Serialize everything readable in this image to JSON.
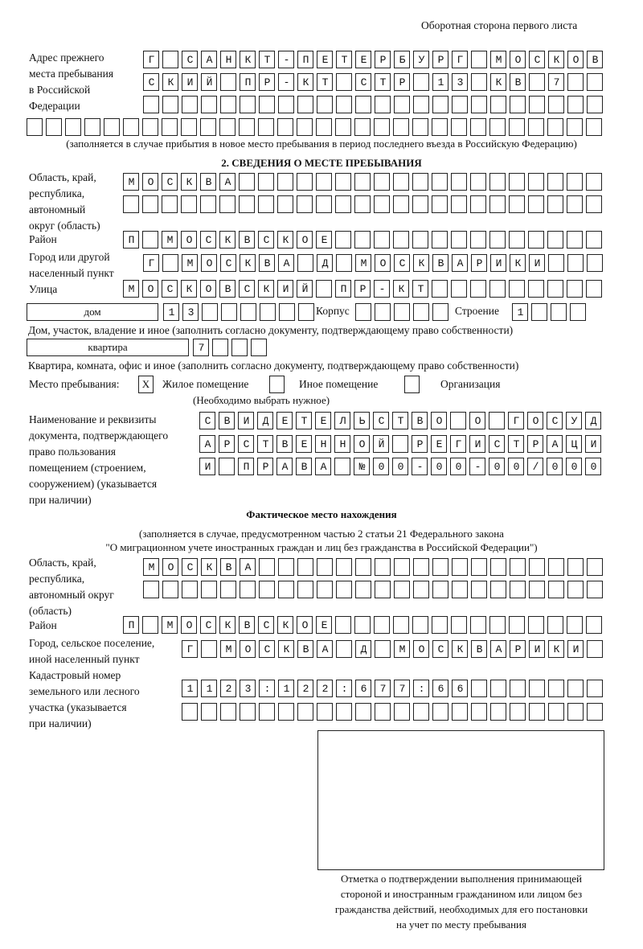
{
  "header": {
    "page_note": "Оборотная сторона первого листа"
  },
  "prev_address": {
    "label": "Адрес прежнего\nместа пребывания\nв Российской\nФедерации",
    "rows": [
      "Г САНКТ-ПЕТЕРБУРГ МОСКОВ",
      "СКИЙ ПР-КТ СТР 13 КВ 7",
      "",
      ""
    ],
    "note": "(заполняется в случае прибытия в новое место пребывания в период последнего въезда в Российскую Федерацию)"
  },
  "section2": {
    "title": "2. СВЕДЕНИЯ О МЕСТЕ ПРЕБЫВАНИЯ",
    "region_label": "Область, край,\nреспублика,\nавтономный\nокруг (область)",
    "region_rows": [
      "МОСКВА",
      ""
    ],
    "district_label": "Район",
    "district": "П МОСКВСКОЕ",
    "city_label": "Город или другой\nнаселенный пункт",
    "city": "Г МОСКВА Д МОСКВАРИКИ",
    "street_label": "Улица",
    "street": "МОСКОВСКИЙ ПР-КТ",
    "house_type": "дом",
    "house_number": "13",
    "korpus_label": "Корпус",
    "korpus": "",
    "stroenie_label": "Строение",
    "stroenie": "1",
    "house_note": "Дом, участок, владение и иное (заполнить согласно документу, подтверждающему право собственности)",
    "apt_type": "квартира",
    "apt_number": "7",
    "apt_note": "Квартира, комната, офис и иное (заполнить согласно документу, подтверждающему право собственности)",
    "place_label": "Место пребывания:",
    "place_options": [
      {
        "mark": "X",
        "label": "Жилое помещение"
      },
      {
        "mark": "",
        "label": "Иное помещение"
      },
      {
        "mark": "",
        "label": "Организация"
      }
    ],
    "place_note": "(Необходимо выбрать нужное)",
    "doc_label": "Наименование и реквизиты\nдокумента, подтверждающего\nправо пользования\nпомещением (строением,\nсооружением) (указывается\nпри наличии)",
    "doc_rows": [
      "СВИДЕТЕЛЬСТВО О ГОСУД",
      "АРСТВЕННОЙ РЕГИСТРАЦИ",
      "И ПРАВА №00-00-00/000"
    ]
  },
  "actual": {
    "title": "Фактическое место нахождения",
    "note1": "(заполняется в случае, предусмотренном частью 2 статьи 21 Федерального закона",
    "note2": "\"О миграционном учете иностранных граждан и лиц без гражданства в Российской Федерации\")",
    "region_label": "Область, край,\nреспублика,\nавтономный округ\n(область)",
    "region_rows": [
      "МОСКВА",
      ""
    ],
    "district_label": "Район",
    "district": "П МОСКВСКОЕ",
    "city_label": "Город, сельское поселение,\nиной населенный пункт",
    "city": "Г МОСКВА Д МОСКВАРИКИ",
    "cadastral_label": "Кадастровый номер\nземельного или лесного\nучастка (указывается\nпри наличии)",
    "cadastral_rows": [
      "1123:122:677:66",
      ""
    ]
  },
  "stamp": {
    "caption": "Отметка о подтверждении выполнения принимающей\nстороной и иностранным гражданином или лицом без\nгражданства действий, необходимых для его постановки\nна учет по месту пребывания"
  }
}
